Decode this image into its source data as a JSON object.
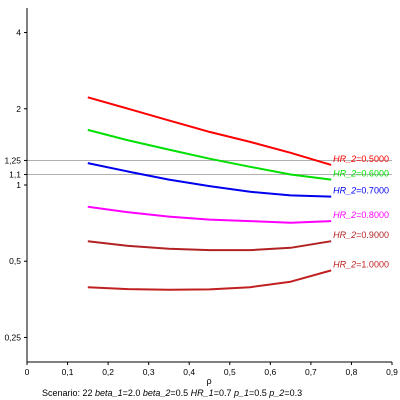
{
  "chart_data": {
    "type": "line",
    "x_axis": {
      "label": "ρ",
      "range": [
        0,
        0.9
      ],
      "ticks": [
        0,
        0.1,
        0.2,
        0.3,
        0.4,
        0.5,
        0.6,
        0.7,
        0.8,
        0.9
      ],
      "tick_labels": [
        "0",
        "0,1",
        "0,2",
        "0,3",
        "0,4",
        "0,5",
        "0,6",
        "0,7",
        "0,8",
        "0,9"
      ]
    },
    "y_axis": {
      "scale": "log",
      "range": [
        0.2,
        5
      ],
      "ticks": [
        0.25,
        0.5,
        1,
        1.1,
        1.25,
        2,
        4
      ],
      "tick_labels": [
        "0,25",
        "0,5",
        "1",
        "1,1",
        "1,25",
        "2",
        "4"
      ]
    },
    "reference_lines": [
      1.25,
      1.1
    ],
    "series": [
      {
        "name": "HR_2",
        "value_text": "0.5000",
        "color": "#ff0000",
        "x": [
          0.15,
          0.25,
          0.35,
          0.45,
          0.55,
          0.65,
          0.75
        ],
        "y": [
          2.22,
          2.0,
          1.8,
          1.62,
          1.48,
          1.34,
          1.2
        ]
      },
      {
        "name": "HR_2",
        "value_text": "0.6000",
        "color": "#00e000",
        "x": [
          0.15,
          0.25,
          0.35,
          0.45,
          0.55,
          0.65,
          0.75
        ],
        "y": [
          1.65,
          1.5,
          1.38,
          1.27,
          1.18,
          1.1,
          1.05
        ]
      },
      {
        "name": "HR_2",
        "value_text": "0.7000",
        "color": "#0000ee",
        "x": [
          0.15,
          0.25,
          0.35,
          0.45,
          0.55,
          0.65,
          0.75
        ],
        "y": [
          1.22,
          1.13,
          1.05,
          0.99,
          0.94,
          0.91,
          0.9
        ]
      },
      {
        "name": "HR_2",
        "value_text": "0.8000",
        "color": "#ff00ff",
        "x": [
          0.15,
          0.25,
          0.35,
          0.45,
          0.55,
          0.65,
          0.75
        ],
        "y": [
          0.82,
          0.78,
          0.75,
          0.73,
          0.72,
          0.71,
          0.72
        ]
      },
      {
        "name": "HR_2",
        "value_text": "0.9000",
        "color": "#b22222",
        "x": [
          0.15,
          0.25,
          0.35,
          0.45,
          0.55,
          0.65,
          0.75
        ],
        "y": [
          0.6,
          0.575,
          0.56,
          0.553,
          0.553,
          0.565,
          0.6
        ]
      },
      {
        "name": "HR_2",
        "value_text": "1.0000",
        "color": "#c02020",
        "x": [
          0.15,
          0.25,
          0.35,
          0.45,
          0.55,
          0.65,
          0.75
        ],
        "y": [
          0.395,
          0.388,
          0.386,
          0.387,
          0.395,
          0.415,
          0.46
        ]
      }
    ],
    "footer": {
      "scenario_label": "Scenario: 22",
      "params": [
        {
          "name": "beta_1",
          "value": "2.0"
        },
        {
          "name": "beta_2",
          "value": "0.5"
        },
        {
          "name": "HR_1",
          "value": "0.7"
        },
        {
          "name": "p_1",
          "value": "0.5"
        },
        {
          "name": "p_2",
          "value": "0.3"
        }
      ]
    }
  }
}
